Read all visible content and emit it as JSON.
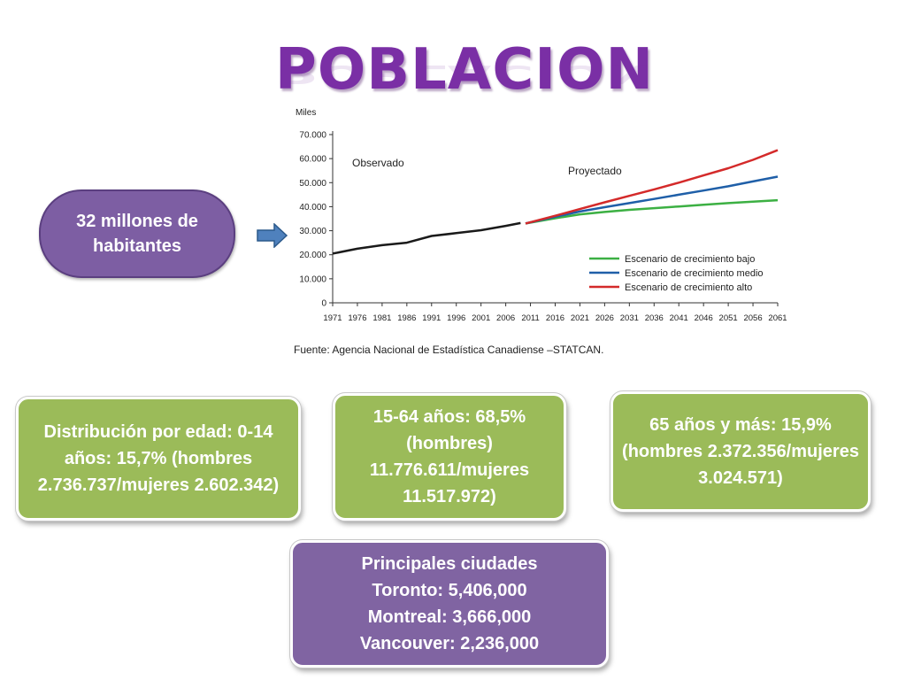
{
  "slide": {
    "title": "POBLACION",
    "pill_text": "32 millones de habitantes",
    "boxes": {
      "age_0_14": "Distribución por edad: 0-14 años: 15,7% (hombres 2.736.737/mujeres 2.602.342)",
      "age_15_64": "15-64 años: 68,5% (hombres) 11.776.611/mujeres 11.517.972)",
      "age_65": "65 años y más: 15,9% (hombres 2.372.356/mujeres 3.024.571)",
      "cities": [
        "Principales ciudades",
        "Toronto: 5,406,000",
        "Montreal: 3,666,000",
        "Vancouver: 2,236,000"
      ]
    },
    "colors": {
      "title": "#7a2fa5",
      "purple_box": "#8064a2",
      "green_box": "#9bbb59",
      "arrow": "#4f81bd"
    }
  },
  "chart_data": {
    "type": "line",
    "ylabel": "Miles",
    "ylim": [
      0,
      70000
    ],
    "yticks": [
      "0",
      "10.000",
      "20.000",
      "30.000",
      "40.000",
      "50.000",
      "60.000",
      "70.000"
    ],
    "yticks_values": [
      0,
      10000,
      20000,
      30000,
      40000,
      50000,
      60000,
      70000
    ],
    "xticks": [
      "1971",
      "1976",
      "1981",
      "1986",
      "1991",
      "1996",
      "2001",
      "2006",
      "2011",
      "2016",
      "2021",
      "2026",
      "2031",
      "2036",
      "2041",
      "2046",
      "2051",
      "2056",
      "2061"
    ],
    "xlim": [
      1971,
      2061
    ],
    "annotations": {
      "observed": "Observado",
      "projected": "Proyectado"
    },
    "source": "Fuente: Agencia Nacional de Estadística Canadiense –STATCAN.",
    "grid": false,
    "legend_placement": "bottom-right",
    "series": [
      {
        "key": "observed",
        "color": "#1a1a1a",
        "x": [
          1971,
          1976,
          1981,
          1986,
          1991,
          1996,
          2001,
          2006,
          2009
        ],
        "y": [
          20500,
          22500,
          24000,
          25000,
          27800,
          29000,
          30200,
          32000,
          33200
        ]
      },
      {
        "name": "Escenario de crecimiento bajo",
        "color": "#3cb043",
        "x": [
          2010,
          2016,
          2021,
          2026,
          2031,
          2036,
          2041,
          2046,
          2051,
          2056,
          2061
        ],
        "y": [
          33000,
          35200,
          36800,
          37800,
          38700,
          39400,
          40100,
          40800,
          41500,
          42100,
          42700
        ]
      },
      {
        "name": "Escenario de crecimiento medio",
        "color": "#1f5fa8",
        "x": [
          2010,
          2016,
          2021,
          2026,
          2031,
          2036,
          2041,
          2046,
          2051,
          2056,
          2061
        ],
        "y": [
          33000,
          35800,
          38000,
          39800,
          41500,
          43200,
          45000,
          46700,
          48500,
          50500,
          52500
        ]
      },
      {
        "name": "Escenario de crecimiento alto",
        "color": "#d42a2a",
        "x": [
          2010,
          2016,
          2021,
          2026,
          2031,
          2036,
          2041,
          2046,
          2051,
          2056,
          2061
        ],
        "y": [
          33000,
          36200,
          39000,
          41800,
          44500,
          47200,
          50000,
          53000,
          56000,
          59500,
          63500
        ]
      }
    ]
  }
}
